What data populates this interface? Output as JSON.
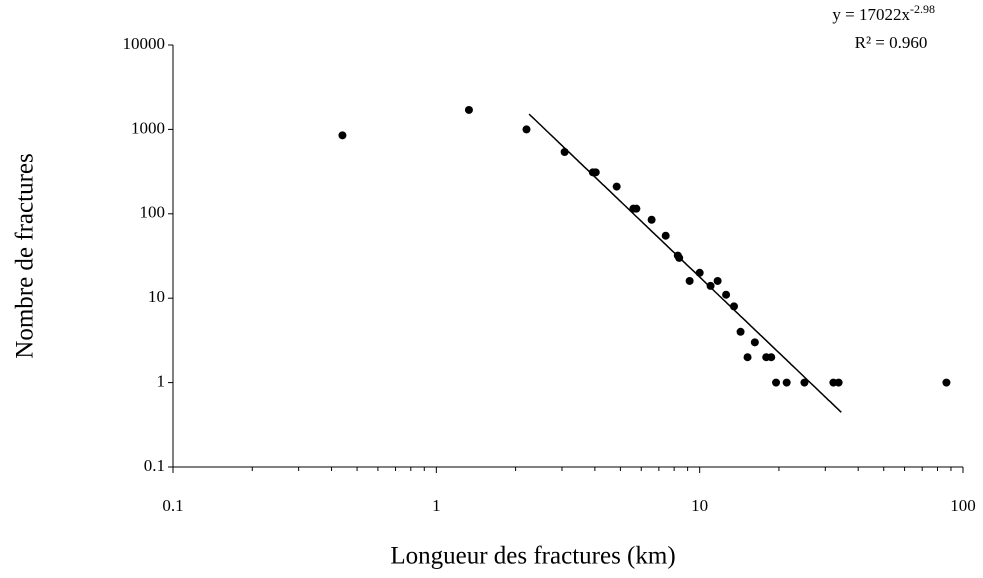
{
  "chart_data": {
    "type": "scatter",
    "x_label": "Longueur des fractures (km)",
    "y_label": "Nombre de fractures",
    "equation": "y = 17022x",
    "equation_exponent": "-2.98",
    "r_squared": "R² = 0.960",
    "x": [
      0.44,
      1.33,
      2.2,
      3.07,
      3.93,
      4.03,
      4.84,
      5.6,
      5.75,
      6.57,
      7.43,
      8.26,
      8.36,
      9.16,
      10,
      11,
      11.7,
      12.6,
      13.5,
      14.3,
      15.2,
      16.2,
      17.9,
      18.7,
      19.5,
      21.4,
      25,
      32.2,
      33.7,
      86.5
    ],
    "values": [
      850,
      1700,
      1000,
      540,
      310,
      310,
      210,
      115,
      115,
      85,
      55,
      32,
      30,
      16,
      20,
      14,
      16,
      11,
      8,
      4,
      2,
      3,
      2,
      2,
      1,
      1,
      1,
      1,
      1,
      1
    ],
    "color": "#000000",
    "trendline": {
      "coefficient": 17022,
      "exponent": -2.98,
      "x_range": [
        2.25,
        34.5
      ],
      "color": "#000000"
    },
    "log_x": true,
    "log_y": true,
    "xlim": [
      0.1,
      100
    ],
    "ylim": [
      0.1,
      10000
    ],
    "xticks": [
      0.1,
      1,
      10,
      100
    ],
    "yticks": [
      0.1,
      1,
      10,
      100,
      1000,
      10000
    ]
  }
}
